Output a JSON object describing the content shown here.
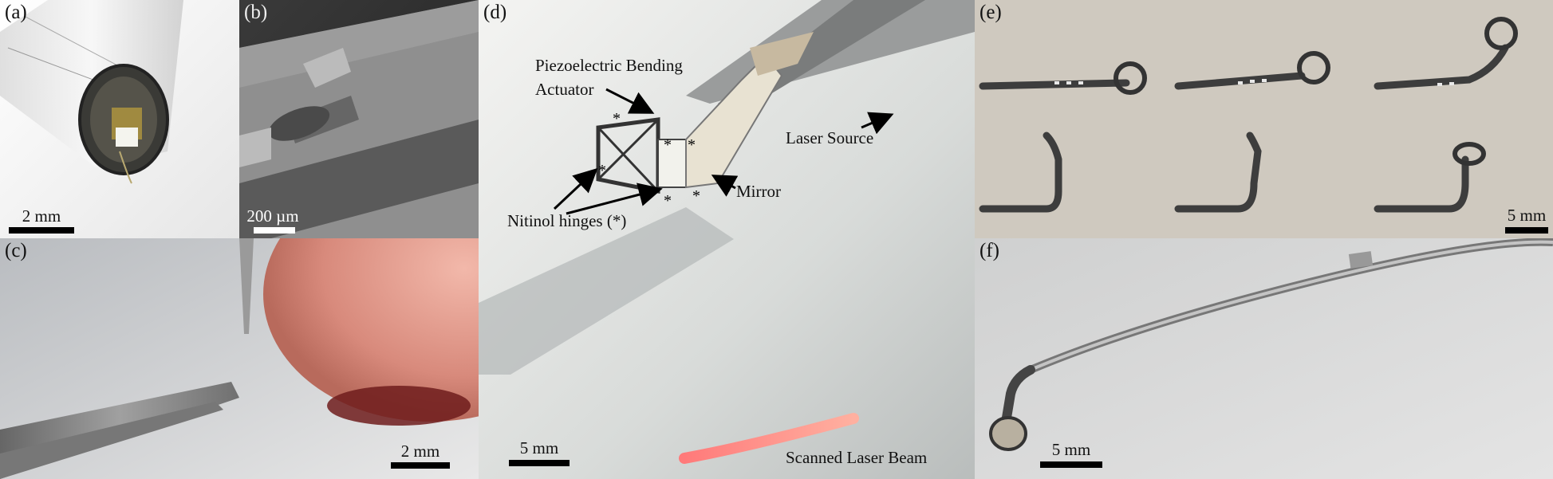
{
  "panels": {
    "a": {
      "label": "(a)",
      "scale": "2 mm"
    },
    "b": {
      "label": "(b)",
      "scale": "200 µm"
    },
    "c": {
      "label": "(c)",
      "scale": "2 mm"
    },
    "d": {
      "label": "(d)",
      "scale": "5 mm",
      "annotations": {
        "actuator_line1": "Piezoelectric Bending",
        "actuator_line2": "Actuator",
        "laser_source": "Laser Source",
        "mirror": "Mirror",
        "hinges": "Nitinol hinges (*)",
        "scanned_beam": "Scanned Laser Beam"
      }
    },
    "e": {
      "label": "(e)",
      "scale": "5 mm"
    },
    "f": {
      "label": "(f)",
      "scale": "5 mm"
    }
  }
}
